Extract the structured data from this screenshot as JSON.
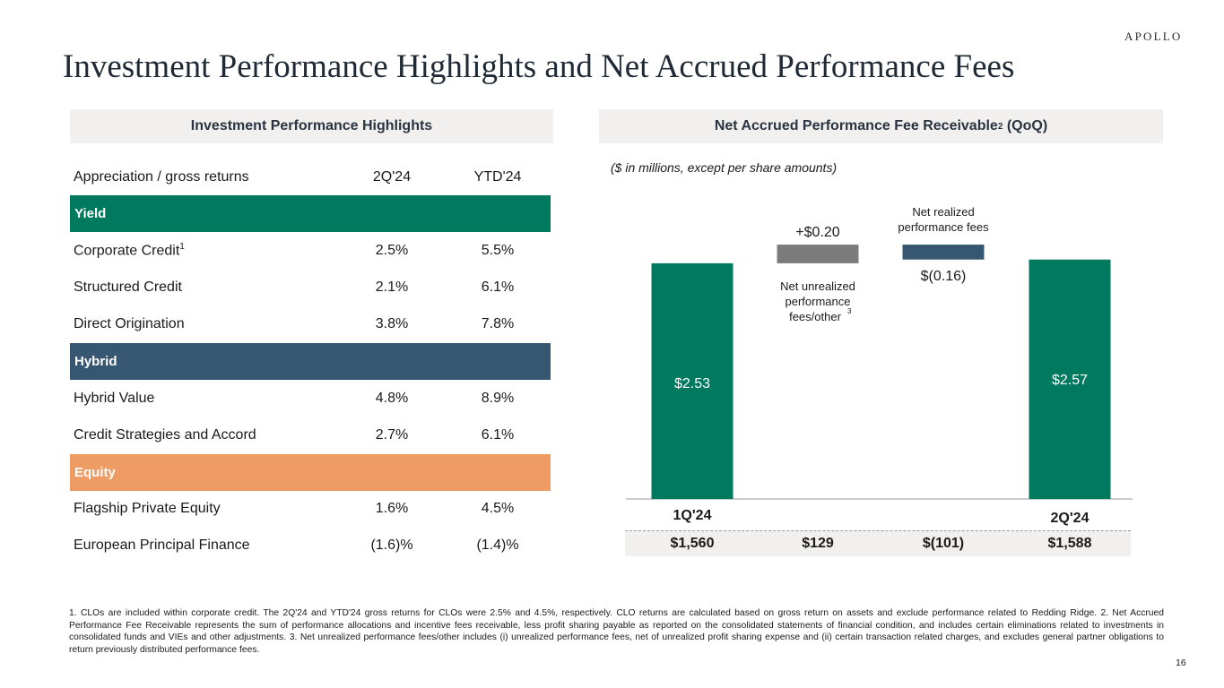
{
  "brand": "APOLLO",
  "title": "Investment Performance Highlights and Net Accrued Performance Fees",
  "left_panel": {
    "header": "Investment Performance Highlights",
    "columns": [
      "Appreciation / gross returns",
      "2Q'24",
      "YTD'24"
    ],
    "sections": [
      {
        "name": "Yield",
        "color": "#007a5e",
        "rows": [
          {
            "label": "Corporate Credit",
            "sup": "1",
            "q": "2.5%",
            "ytd": "5.5%"
          },
          {
            "label": "Structured Credit",
            "sup": "",
            "q": "2.1%",
            "ytd": "6.1%"
          },
          {
            "label": "Direct Origination",
            "sup": "",
            "q": "3.8%",
            "ytd": "7.8%"
          }
        ]
      },
      {
        "name": "Hybrid",
        "color": "#365672",
        "rows": [
          {
            "label": "Hybrid Value",
            "sup": "",
            "q": "4.8%",
            "ytd": "8.9%"
          },
          {
            "label": "Credit Strategies and Accord",
            "sup": "",
            "q": "2.7%",
            "ytd": "6.1%"
          }
        ]
      },
      {
        "name": "Equity",
        "color": "#ee9c63",
        "rows": [
          {
            "label": "Flagship Private Equity",
            "sup": "",
            "q": "1.6%",
            "ytd": "4.5%"
          },
          {
            "label": "European Principal Finance",
            "sup": "",
            "q": "(1.6)%",
            "ytd": "(1.4)%"
          }
        ]
      }
    ]
  },
  "right_panel": {
    "header": "Net Accrued Performance Fee Receivable",
    "header_sup": "2",
    "header_suffix": " (QoQ)",
    "note": "($ in millions, except per share amounts)"
  },
  "chart_data": {
    "type": "bar",
    "subtype": "waterfall",
    "categories": [
      "1Q'24",
      "Net unrealized performance fees/other",
      "Net realized performance fees",
      "2Q'24"
    ],
    "values": [
      2.53,
      0.2,
      -0.16,
      2.57
    ],
    "value_labels": [
      "$2.53",
      "+$0.20",
      "$(0.16)",
      "$2.57"
    ],
    "totals": [
      "$1,560",
      "$129",
      "$(101)",
      "$1,588"
    ],
    "category_labels": {
      "start": "1Q'24",
      "end": "2Q'24",
      "unrealized": [
        "Net unrealized",
        "performance",
        "fees/other"
      ],
      "unrealized_sup": "3",
      "realized": [
        "Net realized",
        "performance fees"
      ]
    },
    "colors": {
      "start": "#007a5e",
      "unrealized": "#7b7b7b",
      "realized": "#365672",
      "end": "#007a5e"
    }
  },
  "footnote": "1. CLOs are included within corporate credit. The 2Q'24 and YTD'24 gross returns for CLOs were 2.5% and 4.5%, respectively. CLO returns are calculated based on gross return on assets and exclude performance related to Redding Ridge. 2. Net Accrued Performance Fee Receivable represents the sum of performance allocations and incentive fees receivable, less profit sharing payable as reported on the consolidated statements of financial condition, and includes certain eliminations related to investments in consolidated funds and VIEs and other adjustments. 3. Net unrealized performance fees/other includes (i) unrealized performance fees, net of unrealized profit sharing expense and (ii) certain transaction related charges, and excludes general partner obligations to return previously distributed performance fees.",
  "page_number": "16"
}
